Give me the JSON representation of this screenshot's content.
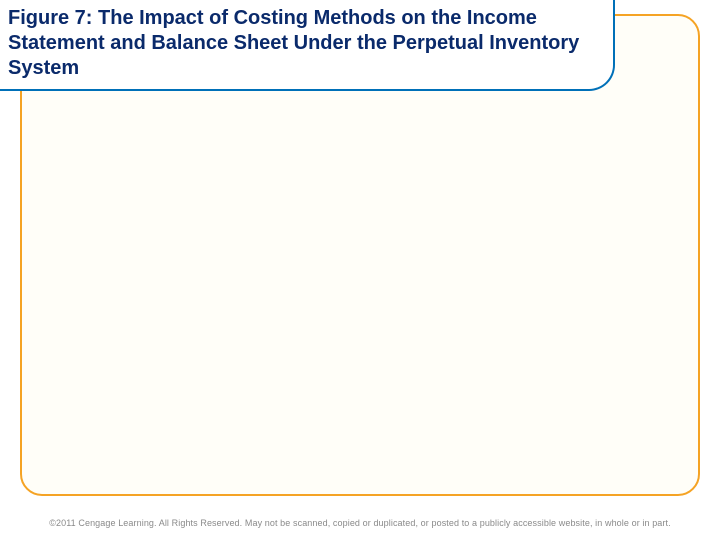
{
  "slide": {
    "title": "Figure 7: The Impact of Costing Methods on the Income Statement and Balance Sheet Under the Perpetual Inventory System",
    "border_color": "#f5a324",
    "background_color": "#fffef8",
    "title_border_color": "#0070b8",
    "title_text_color": "#0a2a6b",
    "title_fontsize": 20,
    "title_fontweight": "bold"
  },
  "footer": {
    "text": "©2011 Cengage Learning. All Rights Reserved. May not be scanned, copied or duplicated, or posted to a publicly accessible website, in whole or in part.",
    "color": "#8a8a8a",
    "fontsize": 9
  }
}
